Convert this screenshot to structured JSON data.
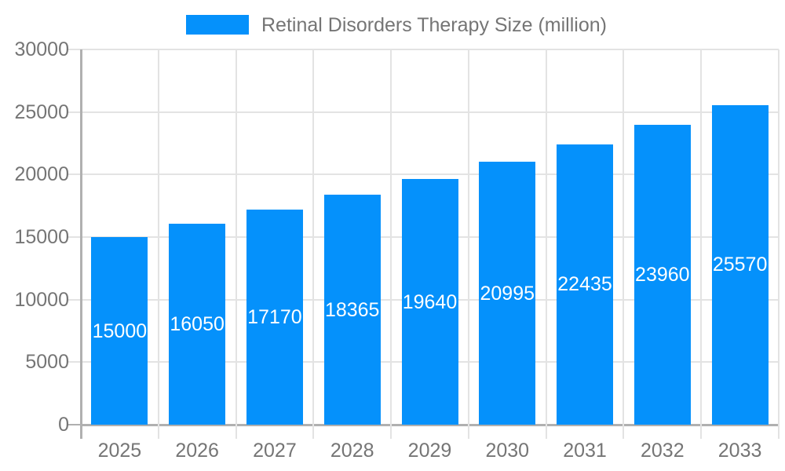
{
  "chart_data": {
    "type": "bar",
    "title": "Retinal Disorders Therapy Size (million)",
    "categories": [
      "2025",
      "2026",
      "2027",
      "2028",
      "2029",
      "2030",
      "2031",
      "2032",
      "2033"
    ],
    "values": [
      15000,
      16050,
      17170,
      18365,
      19640,
      20995,
      22435,
      23960,
      25570
    ],
    "series": [
      {
        "name": "Retinal Disorders Therapy Size (million)",
        "values": [
          15000,
          16050,
          17170,
          18365,
          19640,
          20995,
          22435,
          23960,
          25570
        ]
      }
    ],
    "bar_labels": [
      "15000",
      "16050",
      "17170",
      "18365",
      "19640",
      "20995",
      "22435",
      "23960",
      "25570"
    ],
    "xlabel": "",
    "ylabel": "",
    "ylim": [
      0,
      30000
    ],
    "yticks": [
      0,
      5000,
      10000,
      15000,
      20000,
      25000,
      30000
    ],
    "ytick_labels": [
      "0",
      "5000",
      "10000",
      "15000",
      "20000",
      "25000",
      "30000"
    ],
    "grid": true,
    "legend_position": "top-center",
    "bar_label_position": "center-inside"
  },
  "legend": {
    "label": "Retinal Disorders Therapy Size (million)"
  },
  "colors": {
    "bar": "#0591fb",
    "bar_label_text": "#ffffff",
    "axis_text": "#757575",
    "legend_text": "#757575",
    "gridline": "#e3e3e3",
    "axis_line": "#b0b0b0",
    "background": "#ffffff"
  }
}
